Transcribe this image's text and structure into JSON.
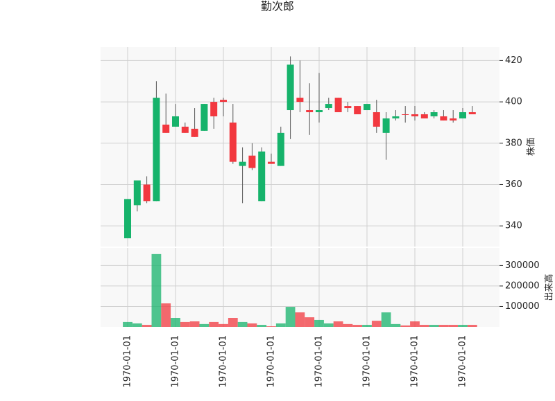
{
  "chart_data": {
    "type": "candlestick",
    "title": "勤次郎",
    "categories": [
      "1970-01-01",
      null,
      null,
      null,
      null,
      "1970-01-01",
      null,
      null,
      null,
      null,
      "1970-01-01",
      null,
      null,
      null,
      null,
      "1970-01-01",
      null,
      null,
      null,
      null,
      "1970-01-01",
      null,
      null,
      null,
      null,
      "1970-01-01",
      null,
      null,
      null,
      null,
      "1970-01-01",
      null,
      null,
      null,
      null,
      "1970-01-01",
      null
    ],
    "open": [
      334,
      350,
      360,
      352,
      389,
      388,
      388,
      387,
      386,
      400,
      401,
      390,
      369,
      374,
      352,
      371,
      369,
      396,
      402,
      396,
      395,
      397,
      402,
      398,
      398,
      396,
      395,
      385,
      392,
      394,
      394,
      394,
      393,
      393,
      392,
      392,
      395
    ],
    "high": [
      353,
      362,
      364,
      410,
      404,
      399,
      390,
      397,
      399,
      402,
      402,
      399,
      378,
      380,
      378,
      375,
      388,
      422,
      420,
      409,
      414,
      402,
      402,
      400,
      398,
      399,
      401,
      395,
      396,
      398,
      398,
      395,
      396,
      396,
      396,
      397,
      398
    ],
    "low": [
      334,
      347,
      351,
      352,
      385,
      388,
      385,
      383,
      386,
      387,
      393,
      370,
      351,
      367,
      352,
      370,
      369,
      382,
      395,
      384,
      390,
      396,
      395,
      395,
      394,
      396,
      385,
      372,
      391,
      390,
      391,
      392,
      392,
      391,
      390,
      392,
      394
    ],
    "close": [
      353,
      362,
      352,
      402,
      385,
      393,
      385,
      383,
      399,
      393,
      400,
      371,
      371,
      368,
      376,
      370,
      385,
      418,
      400,
      395,
      396,
      399,
      395,
      397,
      394,
      399,
      388,
      392,
      393,
      393.7,
      393,
      392,
      395,
      391,
      391,
      395,
      394
    ],
    "volume": [
      24000,
      17000,
      10000,
      356000,
      115000,
      44000,
      24000,
      27000,
      14000,
      24000,
      14000,
      44000,
      24000,
      17000,
      10000,
      3000,
      17000,
      98000,
      71000,
      47000,
      34000,
      17000,
      27000,
      14000,
      10000,
      10000,
      30000,
      71000,
      14000,
      7000,
      27000,
      10000,
      10000,
      10000,
      10000,
      10000,
      10000
    ],
    "ylabel": "株価",
    "y2label": "出来高",
    "ylim": [
      330,
      426.5
    ],
    "yticks": [
      340,
      360,
      380,
      400,
      420
    ],
    "y2lim": [
      0,
      386000
    ],
    "y2ticks": [
      100000,
      200000,
      300000
    ],
    "up_color": "#16b36b",
    "down_color": "#f2383f",
    "grid": true
  }
}
